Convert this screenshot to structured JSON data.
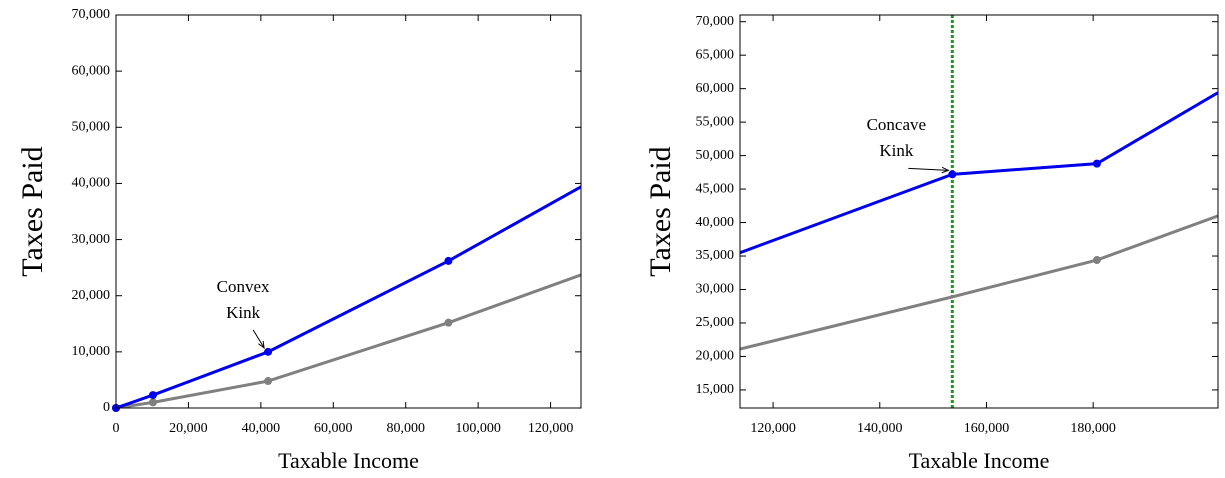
{
  "chart_data": [
    {
      "type": "line",
      "xlabel": "Taxable Income",
      "ylabel": "Taxes Paid",
      "x": [
        0,
        10200,
        42000,
        91800,
        128400
      ],
      "series": [
        {
          "color": "#808080",
          "values": [
            0,
            1000,
            4800,
            15200,
            23700
          ],
          "markers": [
            true,
            true,
            true,
            true,
            false
          ]
        },
        {
          "color": "#0000ee",
          "values": [
            0,
            2300,
            10000,
            26200,
            39400
          ],
          "markers": [
            true,
            true,
            true,
            true,
            false
          ]
        }
      ],
      "annotation": [
        "Convex",
        "Kink"
      ],
      "xlim": [
        0,
        128400
      ],
      "ylim": [
        0,
        70000
      ],
      "xticks": [
        0,
        {
          "value": 20000,
          "label": "20,000"
        },
        {
          "value": 40000,
          "label": "40,000"
        },
        {
          "value": 60000,
          "label": "60,000"
        },
        {
          "value": 80000,
          "label": "80,000"
        },
        {
          "value": 100000,
          "label": "100,000"
        },
        {
          "value": 120000,
          "label": "120,000"
        }
      ],
      "yticks": [
        0,
        {
          "value": 10000,
          "label": "10,000"
        },
        {
          "value": 20000,
          "label": "20,000"
        },
        {
          "value": 30000,
          "label": "30,000"
        },
        {
          "value": 40000,
          "label": "40,000"
        },
        {
          "value": 50000,
          "label": "50,000"
        },
        {
          "value": 60000,
          "label": "60,000"
        },
        {
          "value": 70000,
          "label": "70,000"
        }
      ]
    },
    {
      "type": "line",
      "xlabel": "Taxable Income",
      "ylabel": "Taxes Paid",
      "x": [
        113800,
        153600,
        180700,
        203400
      ],
      "series": [
        {
          "color": "#808080",
          "values": [
            21100,
            28900,
            34400,
            41000
          ],
          "markers": [
            false,
            false,
            true,
            false
          ]
        },
        {
          "color": "#0000ee",
          "values": [
            35500,
            47200,
            48800,
            59400
          ],
          "markers": [
            false,
            true,
            true,
            false
          ]
        }
      ],
      "vline": {
        "value": 153600,
        "color": "#1a9a1a"
      },
      "annotation": [
        "Concave",
        "Kink"
      ],
      "xlim": [
        113800,
        203400
      ],
      "ylim": [
        12300,
        71000
      ],
      "xticks": [
        {
          "value": 120000,
          "label": "120,000"
        },
        {
          "value": 140000,
          "label": "140,000"
        },
        {
          "value": 160000,
          "label": "160,000"
        },
        {
          "value": 180000,
          "label": "180,000"
        }
      ],
      "yticks": [
        {
          "value": 15000,
          "label": "15,000"
        },
        {
          "value": 20000,
          "label": "20,000"
        },
        {
          "value": 25000,
          "label": "25,000"
        },
        {
          "value": 30000,
          "label": "30,000"
        },
        {
          "value": 35000,
          "label": "35,000"
        },
        {
          "value": 40000,
          "label": "40,000"
        },
        {
          "value": 45000,
          "label": "45,000"
        },
        {
          "value": 50000,
          "label": "50,000"
        },
        {
          "value": 55000,
          "label": "55,000"
        },
        {
          "value": 60000,
          "label": "60,000"
        },
        {
          "value": 65000,
          "label": "65,000"
        },
        {
          "value": 70000,
          "label": "70,000"
        }
      ]
    }
  ]
}
